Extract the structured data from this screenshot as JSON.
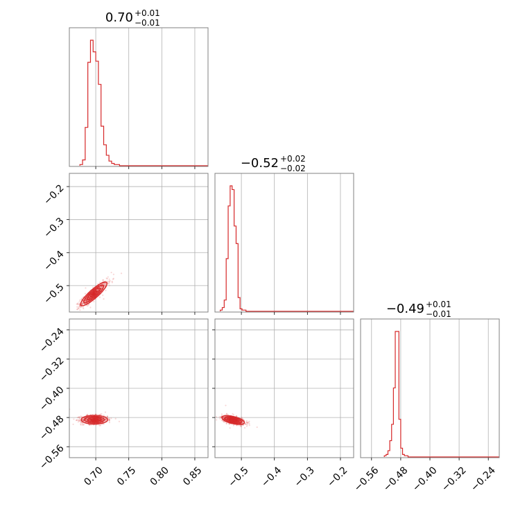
{
  "chart_data": {
    "type": "corner",
    "color": "#d62728",
    "params": [
      {
        "index": 0,
        "title": {
          "median": "0.70",
          "plus": "+0.01",
          "minus": "−0.01"
        },
        "range": [
          0.66,
          0.87
        ],
        "ticks": [
          0.7,
          0.75,
          0.8,
          0.85
        ],
        "tick_labels": [
          "0.70",
          "0.75",
          "0.80",
          "0.85"
        ]
      },
      {
        "index": 1,
        "title": {
          "median": "−0.52",
          "plus": "+0.02",
          "minus": "−0.02"
        },
        "range": [
          -0.58,
          -0.16
        ],
        "ticks": [
          -0.5,
          -0.4,
          -0.3,
          -0.2
        ],
        "tick_labels": [
          "−0.5",
          "−0.4",
          "−0.3",
          "−0.2"
        ]
      },
      {
        "index": 2,
        "title": {
          "median": "−0.49",
          "plus": "+0.01",
          "minus": "−0.01"
        },
        "range": [
          -0.59,
          -0.21
        ],
        "ticks": [
          -0.56,
          -0.48,
          -0.4,
          -0.32,
          -0.24
        ],
        "tick_labels": [
          "−0.56",
          "−0.48",
          "−0.40",
          "−0.32",
          "−0.24"
        ]
      }
    ],
    "histograms": [
      {
        "param": 0,
        "bin_edges": [
          0.676,
          0.68,
          0.684,
          0.688,
          0.692,
          0.696,
          0.7,
          0.704,
          0.708,
          0.712,
          0.716,
          0.72,
          0.724,
          0.728,
          0.732,
          0.736,
          0.74
        ],
        "counts": [
          1,
          5,
          33,
          89,
          108,
          98,
          90,
          70,
          34,
          18,
          9,
          4,
          2,
          1,
          1,
          0
        ]
      },
      {
        "param": 1,
        "bin_edges": [
          -0.564,
          -0.558,
          -0.552,
          -0.546,
          -0.54,
          -0.534,
          -0.528,
          -0.522,
          -0.516,
          -0.51,
          -0.504,
          -0.498,
          -0.492,
          -0.486,
          -0.48,
          -0.474,
          -0.468
        ],
        "counts": [
          1,
          3,
          9,
          42,
          84,
          100,
          97,
          68,
          54,
          11,
          2,
          1,
          1,
          0,
          0,
          0
        ]
      },
      {
        "param": 2,
        "bin_edges": [
          -0.525,
          -0.52,
          -0.515,
          -0.51,
          -0.505,
          -0.5,
          -0.495,
          -0.49,
          -0.485,
          -0.48,
          -0.475,
          -0.47,
          -0.465,
          -0.46,
          -0.455
        ],
        "counts": [
          1,
          2,
          5,
          13,
          26,
          55,
          100,
          100,
          30,
          7,
          2,
          1,
          1,
          0
        ]
      }
    ],
    "pairs": [
      {
        "x": 0,
        "y": 1,
        "center": [
          0.697,
          -0.525
        ],
        "sigma": [
          0.01,
          0.018
        ],
        "rho": 0.88
      },
      {
        "x": 0,
        "y": 2,
        "center": [
          0.698,
          -0.486
        ],
        "sigma": [
          0.01,
          0.006
        ],
        "rho": 0.0
      },
      {
        "x": 1,
        "y": 2,
        "center": [
          -0.525,
          -0.487
        ],
        "sigma": [
          0.017,
          0.006
        ],
        "rho": -0.55
      }
    ]
  }
}
